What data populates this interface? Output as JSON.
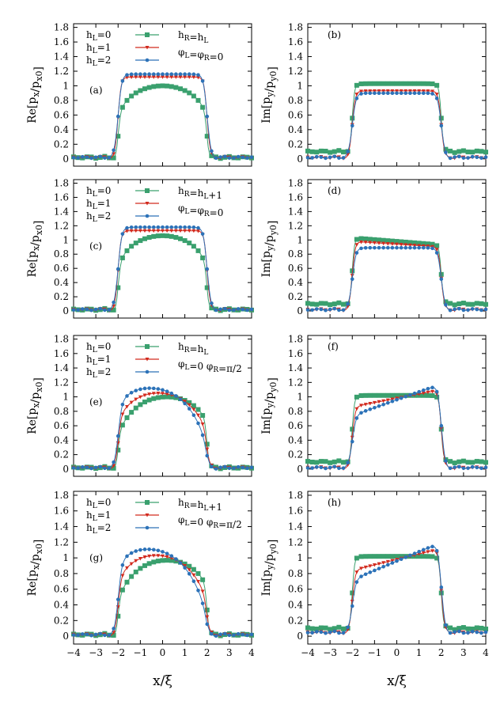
{
  "figure": {
    "xlabel_left": "x/ξ",
    "xlabel_right": "x/ξ"
  },
  "colors": {
    "h0": "#3aa06e",
    "h1": "#d22a1e",
    "h2": "#2c72b8"
  },
  "chart_data": [
    {
      "type": "line",
      "label": "(a)",
      "ylabel": "Re[px/px0]",
      "yvar": "x",
      "kind": "re",
      "xlim": [
        -4,
        4
      ],
      "ylim": [
        -0.1,
        1.85
      ],
      "xticks": [
        "−4",
        "−3",
        "−2",
        "−1",
        "0",
        "1",
        "2",
        "3",
        "4"
      ],
      "yticks": [
        "0",
        "0.2",
        "0.4",
        "0.6",
        "0.8",
        "1",
        "1.2",
        "1.4",
        "1.6",
        "1.8"
      ],
      "legend": [
        "hL=0",
        "hL=1",
        "hL=2"
      ],
      "params": [
        "hR=hL",
        "φL=φR=0"
      ],
      "series": [
        {
          "name": "hL=0",
          "shape": "dome",
          "peak": 1.0,
          "bg": 0.02
        },
        {
          "name": "hL=1",
          "shape": "flat",
          "peak": 1.12,
          "bg": 0.02
        },
        {
          "name": "hL=2",
          "shape": "flat",
          "peak": 1.16,
          "bg": 0.02
        }
      ]
    },
    {
      "type": "line",
      "label": "(b)",
      "ylabel": "Im[py/py0]",
      "yvar": "y",
      "kind": "im",
      "xlim": [
        -4,
        4
      ],
      "ylim": [
        -0.1,
        1.85
      ],
      "xticks": [
        "−4",
        "−3",
        "−2",
        "−1",
        "0",
        "1",
        "2",
        "3",
        "4"
      ],
      "yticks": [
        "0",
        "0.2",
        "0.4",
        "0.6",
        "0.8",
        "1",
        "1.2",
        "1.4",
        "1.6",
        "1.8"
      ],
      "series": [
        {
          "name": "hL=0",
          "shape": "flat",
          "peak": 1.03,
          "bg": 0.1
        },
        {
          "name": "hL=1",
          "shape": "flat",
          "peak": 0.93,
          "bg": 0.02
        },
        {
          "name": "hL=2",
          "shape": "flat",
          "peak": 0.9,
          "bg": 0.02
        }
      ]
    },
    {
      "type": "line",
      "label": "(c)",
      "ylabel": "Re[px/px0]",
      "yvar": "x",
      "kind": "re",
      "xlim": [
        -4,
        4
      ],
      "ylim": [
        -0.1,
        1.85
      ],
      "xticks": [
        "−4",
        "−3",
        "−2",
        "−1",
        "0",
        "1",
        "2",
        "3",
        "4"
      ],
      "yticks": [
        "0",
        "0.2",
        "0.4",
        "0.6",
        "0.8",
        "1",
        "1.2",
        "1.4",
        "1.6",
        "1.8"
      ],
      "legend": [
        "hL=0",
        "hL=1",
        "hL=2"
      ],
      "params": [
        "hR=hL+1",
        "φL=φR=0"
      ],
      "series": [
        {
          "name": "hL=0",
          "shape": "dome",
          "peak": 1.06,
          "bg": 0.02
        },
        {
          "name": "hL=1",
          "shape": "flat",
          "peak": 1.13,
          "bg": 0.02
        },
        {
          "name": "hL=2",
          "shape": "flat",
          "peak": 1.18,
          "bg": 0.02
        }
      ]
    },
    {
      "type": "line",
      "label": "(d)",
      "ylabel": "Im[py/py0]",
      "yvar": "y",
      "kind": "im",
      "xlim": [
        -4,
        4
      ],
      "ylim": [
        -0.1,
        1.85
      ],
      "xticks": [
        "−4",
        "−3",
        "−2",
        "−1",
        "0",
        "1",
        "2",
        "3",
        "4"
      ],
      "yticks": [
        "0",
        "0.2",
        "0.4",
        "0.6",
        "0.8",
        "1",
        "1.2",
        "1.4",
        "1.6",
        "1.8"
      ],
      "series": [
        {
          "name": "hL=0",
          "shape": "tiltdown",
          "peak": 0.98,
          "tilt": -0.05,
          "bg": 0.1
        },
        {
          "name": "hL=1",
          "shape": "tiltdown",
          "peak": 0.94,
          "tilt": -0.04,
          "bg": 0.02
        },
        {
          "name": "hL=2",
          "shape": "flat",
          "peak": 0.89,
          "bg": 0.02
        }
      ]
    },
    {
      "type": "line",
      "label": "(e)",
      "ylabel": "Re[px/px0]",
      "yvar": "x",
      "kind": "re",
      "xlim": [
        -4,
        4
      ],
      "ylim": [
        -0.1,
        1.85
      ],
      "xticks": [
        "−4",
        "−3",
        "−2",
        "−1",
        "0",
        "1",
        "2",
        "3",
        "4"
      ],
      "yticks": [
        "0",
        "0.2",
        "0.4",
        "0.6",
        "0.8",
        "1",
        "1.2",
        "1.4",
        "1.6",
        "1.8"
      ],
      "legend": [
        "hL=0",
        "hL=1",
        "hL=2"
      ],
      "params": [
        "hR=hL",
        "φL=0  φR=π/2"
      ],
      "series": [
        {
          "name": "hL=0",
          "shape": "skewdome",
          "peak": 1.0,
          "shift": 0.2,
          "bg": 0.02
        },
        {
          "name": "hL=1",
          "shape": "skewdome",
          "peak": 1.05,
          "shift": -0.2,
          "bg": 0.02
        },
        {
          "name": "hL=2",
          "shape": "skewdome",
          "peak": 1.12,
          "shift": -0.6,
          "bg": 0.02
        }
      ]
    },
    {
      "type": "line",
      "label": "(f)",
      "ylabel": "Im[py/py0]",
      "yvar": "y",
      "kind": "im",
      "xlim": [
        -4,
        4
      ],
      "ylim": [
        -0.1,
        1.85
      ],
      "xticks": [
        "−4",
        "−3",
        "−2",
        "−1",
        "0",
        "1",
        "2",
        "3",
        "4"
      ],
      "yticks": [
        "0",
        "0.2",
        "0.4",
        "0.6",
        "0.8",
        "1",
        "1.2",
        "1.4",
        "1.6",
        "1.8"
      ],
      "series": [
        {
          "name": "hL=0",
          "shape": "flat",
          "peak": 1.02,
          "bg": 0.1
        },
        {
          "name": "hL=1",
          "shape": "tiltup",
          "peak": 0.98,
          "tilt": 0.12,
          "bg": 0.02
        },
        {
          "name": "hL=2",
          "shape": "tiltup",
          "peak": 0.96,
          "tilt": 0.22,
          "bg": 0.02
        }
      ]
    },
    {
      "type": "line",
      "label": "(g)",
      "ylabel": "Re[px/px0]",
      "yvar": "x",
      "kind": "re",
      "xlim": [
        -4,
        4
      ],
      "ylim": [
        -0.1,
        1.85
      ],
      "xticks": [
        "−4",
        "−3",
        "−2",
        "−1",
        "0",
        "1",
        "2",
        "3",
        "4"
      ],
      "yticks": [
        "0",
        "0.2",
        "0.4",
        "0.6",
        "0.8",
        "1",
        "1.2",
        "1.4",
        "1.6",
        "1.8"
      ],
      "legend": [
        "hL=0",
        "hL=1",
        "hL=2"
      ],
      "params": [
        "hR=hL+1",
        "φL=0  φR=π/2"
      ],
      "series": [
        {
          "name": "hL=0",
          "shape": "skewdome",
          "peak": 0.97,
          "shift": 0.2,
          "bg": 0.02
        },
        {
          "name": "hL=1",
          "shape": "skewdome",
          "peak": 1.03,
          "shift": -0.3,
          "bg": 0.02
        },
        {
          "name": "hL=2",
          "shape": "skewdome",
          "peak": 1.11,
          "shift": -0.7,
          "bg": 0.02
        }
      ]
    },
    {
      "type": "line",
      "label": "(h)",
      "ylabel": "Im[py/py0]",
      "yvar": "y",
      "kind": "im",
      "xlim": [
        -4,
        4
      ],
      "ylim": [
        -0.1,
        1.85
      ],
      "xticks": [
        "−4",
        "−3",
        "−2",
        "−1",
        "0",
        "1",
        "2",
        "3",
        "4"
      ],
      "yticks": [
        "0",
        "0.2",
        "0.4",
        "0.6",
        "0.8",
        "1",
        "1.2",
        "1.4",
        "1.6",
        "1.8"
      ],
      "series": [
        {
          "name": "hL=0",
          "shape": "flat",
          "peak": 1.02,
          "bg": 0.1
        },
        {
          "name": "hL=1",
          "shape": "tiltup",
          "peak": 0.98,
          "tilt": 0.14,
          "bg": 0.05
        },
        {
          "name": "hL=2",
          "shape": "tiltup",
          "peak": 0.96,
          "tilt": 0.24,
          "bg": 0.05
        }
      ]
    }
  ]
}
